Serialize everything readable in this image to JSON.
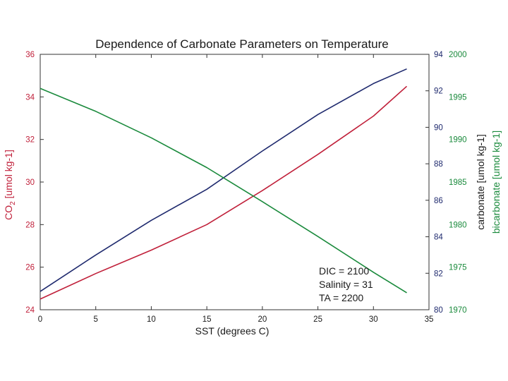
{
  "chart_data": {
    "type": "line",
    "title": "Dependence of Carbonate Parameters on Temperature",
    "xlabel": "SST (degrees C)",
    "xlim": [
      0,
      35
    ],
    "xticks": [
      "0",
      "5",
      "10",
      "15",
      "20",
      "25",
      "30",
      "35"
    ],
    "axes": {
      "left": {
        "label": "CO2 [umol kg-1]",
        "label_main": "CO",
        "label_sub": "2",
        "label_rest": " [umol kg-1]",
        "lim": [
          24,
          36
        ],
        "ticks": [
          "24",
          "26",
          "28",
          "30",
          "32",
          "34",
          "36"
        ],
        "color": "#c0203a"
      },
      "right1": {
        "label": "carbonate [umol kg-1]",
        "lim": [
          80,
          94
        ],
        "ticks": [
          "80",
          "82",
          "84",
          "86",
          "88",
          "90",
          "92",
          "94"
        ],
        "color": "#1f2a6e"
      },
      "right2": {
        "label": "bicarbonate [umol kg-1]",
        "lim": [
          1970,
          2000
        ],
        "ticks": [
          "1970",
          "1975",
          "1980",
          "1985",
          "1990",
          "1995",
          "2000"
        ],
        "color": "#1a8a3c"
      }
    },
    "series": [
      {
        "name": "CO2",
        "axis": "left",
        "color": "#c0203a",
        "x": [
          0,
          5,
          10,
          15,
          20,
          25,
          30,
          33
        ],
        "values": [
          24.5,
          25.7,
          26.8,
          28.0,
          29.6,
          31.3,
          33.1,
          34.5
        ]
      },
      {
        "name": "carbonate",
        "axis": "right1",
        "color": "#1f2a6e",
        "x": [
          0,
          5,
          10,
          15,
          20,
          25,
          30,
          33
        ],
        "values": [
          81.0,
          83.0,
          84.9,
          86.6,
          88.7,
          90.7,
          92.4,
          93.2
        ]
      },
      {
        "name": "bicarbonate",
        "axis": "right2",
        "color": "#1a8a3c",
        "x": [
          0,
          5,
          10,
          15,
          20,
          25,
          30,
          33
        ],
        "values": [
          1996.0,
          1993.3,
          1990.2,
          1986.7,
          1982.7,
          1978.6,
          1974.4,
          1972.0
        ]
      }
    ],
    "annotations": [
      "DIC = 2100",
      "Salinity = 31",
      "TA = 2200"
    ],
    "grid": false
  }
}
